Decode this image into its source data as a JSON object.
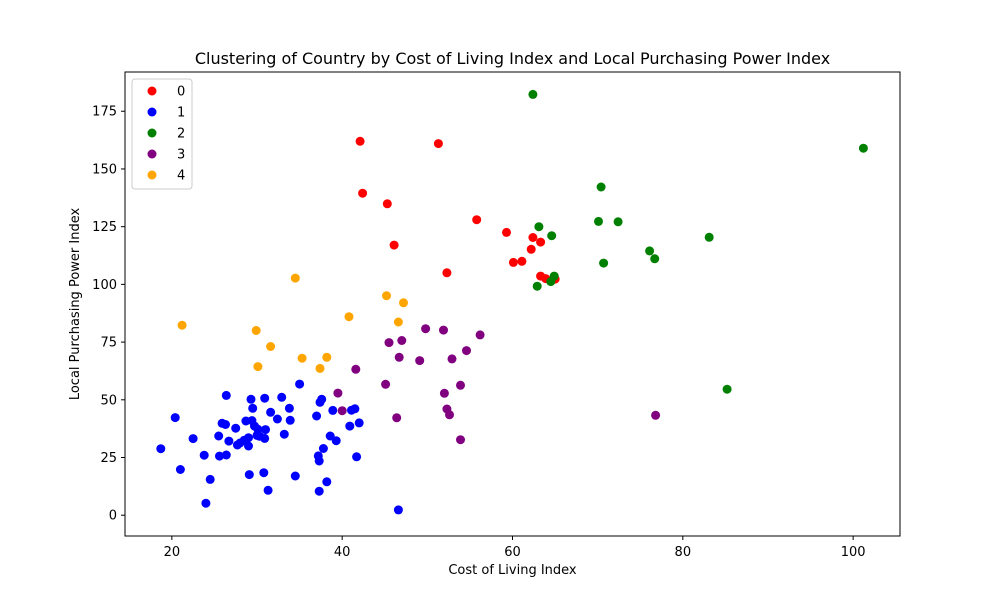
{
  "chart_data": {
    "type": "scatter",
    "title": "Clustering of Country by Cost of Living Index and Local Purchasing Power Index",
    "xlabel": "Cost of Living Index",
    "ylabel": "Local Purchasing Power Index",
    "xlim": [
      14.5,
      105.5
    ],
    "ylim": [
      -9,
      192
    ],
    "xticks": [
      20,
      40,
      60,
      80,
      100
    ],
    "yticks": [
      0,
      25,
      50,
      75,
      100,
      125,
      150,
      175
    ],
    "grid": false,
    "legend": {
      "position": "top-left",
      "entries": [
        "0",
        "1",
        "2",
        "3",
        "4"
      ]
    },
    "series": [
      {
        "name": "0",
        "color": "#ff0000",
        "points": [
          [
            42.1,
            162
          ],
          [
            51.3,
            161
          ],
          [
            42.4,
            139.5
          ],
          [
            45.3,
            134.9
          ],
          [
            46.1,
            117
          ],
          [
            55.8,
            128
          ],
          [
            59.3,
            122.5
          ],
          [
            62.4,
            120.3
          ],
          [
            63.3,
            118.3
          ],
          [
            62.2,
            115.2
          ],
          [
            60.1,
            109.5
          ],
          [
            61.1,
            110
          ],
          [
            52.3,
            105
          ],
          [
            63.3,
            103.6
          ],
          [
            63.9,
            102.5
          ],
          [
            65.0,
            102.3
          ]
        ]
      },
      {
        "name": "1",
        "color": "#0000ff",
        "points": [
          [
            18.7,
            28.8
          ],
          [
            20.4,
            42.3
          ],
          [
            21.0,
            19.8
          ],
          [
            22.5,
            33.2
          ],
          [
            23.8,
            26.0
          ],
          [
            24.0,
            5.2
          ],
          [
            24.5,
            15.5
          ],
          [
            25.5,
            34.3
          ],
          [
            25.6,
            25.6
          ],
          [
            25.9,
            39.8
          ],
          [
            26.3,
            39.3
          ],
          [
            26.4,
            51.9
          ],
          [
            26.4,
            26.1
          ],
          [
            26.7,
            32.1
          ],
          [
            27.5,
            37.7
          ],
          [
            27.7,
            30.4
          ],
          [
            28.0,
            31.3
          ],
          [
            28.5,
            32.5
          ],
          [
            28.7,
            40.8
          ],
          [
            29.0,
            33.6
          ],
          [
            29.0,
            30.0
          ],
          [
            29.1,
            17.6
          ],
          [
            29.3,
            50.2
          ],
          [
            29.4,
            41.0
          ],
          [
            29.5,
            46.3
          ],
          [
            29.7,
            38.6
          ],
          [
            30.0,
            34.6
          ],
          [
            30.1,
            37.2
          ],
          [
            30.3,
            34.2
          ],
          [
            30.8,
            18.4
          ],
          [
            30.9,
            50.7
          ],
          [
            30.9,
            33.3
          ],
          [
            31.0,
            37.1
          ],
          [
            31.3,
            10.8
          ],
          [
            31.6,
            44.6
          ],
          [
            32.4,
            41.7
          ],
          [
            32.9,
            51.1
          ],
          [
            33.2,
            35.1
          ],
          [
            33.8,
            46.3
          ],
          [
            33.9,
            41.1
          ],
          [
            34.5,
            17.0
          ],
          [
            35.0,
            56.8
          ],
          [
            37.0,
            43.0
          ],
          [
            37.2,
            25.7
          ],
          [
            37.3,
            23.5
          ],
          [
            37.3,
            10.4
          ],
          [
            37.4,
            48.9
          ],
          [
            37.6,
            50.2
          ],
          [
            37.8,
            28.9
          ],
          [
            38.2,
            14.5
          ],
          [
            38.6,
            34.3
          ],
          [
            38.9,
            45.4
          ],
          [
            39.3,
            32.3
          ],
          [
            40.9,
            38.6
          ],
          [
            41.1,
            45.5
          ],
          [
            41.5,
            46.1
          ],
          [
            41.7,
            25.3
          ],
          [
            42.0,
            40.0
          ],
          [
            46.6,
            2.3
          ]
        ]
      },
      {
        "name": "2",
        "color": "#008000",
        "points": [
          [
            62.4,
            182.3
          ],
          [
            101.2,
            159
          ],
          [
            70.4,
            142.2
          ],
          [
            70.1,
            127.3
          ],
          [
            72.4,
            127.1
          ],
          [
            63.1,
            125
          ],
          [
            64.6,
            121.1
          ],
          [
            83.1,
            120.4
          ],
          [
            76.1,
            114.5
          ],
          [
            76.7,
            111.1
          ],
          [
            70.7,
            109.2
          ],
          [
            64.9,
            103.6
          ],
          [
            64.5,
            101.2
          ],
          [
            62.9,
            99.2
          ],
          [
            85.2,
            54.6
          ]
        ]
      },
      {
        "name": "3",
        "color": "#800080",
        "points": [
          [
            49.8,
            80.8
          ],
          [
            51.9,
            80.2
          ],
          [
            56.2,
            78.1
          ],
          [
            47.0,
            75.7
          ],
          [
            45.5,
            74.8
          ],
          [
            54.6,
            71.3
          ],
          [
            46.7,
            68.4
          ],
          [
            52.9,
            67.7
          ],
          [
            49.1,
            67.0
          ],
          [
            41.6,
            63.2
          ],
          [
            45.1,
            56.7
          ],
          [
            53.9,
            56.3
          ],
          [
            39.5,
            52.9
          ],
          [
            52.0,
            52.8
          ],
          [
            40.0,
            45.3
          ],
          [
            52.3,
            46.0
          ],
          [
            52.6,
            43.5
          ],
          [
            46.4,
            42.2
          ],
          [
            76.8,
            43.3
          ],
          [
            53.9,
            32.7
          ]
        ]
      },
      {
        "name": "4",
        "color": "#ffa500",
        "points": [
          [
            34.5,
            102.7
          ],
          [
            45.2,
            95.1
          ],
          [
            47.2,
            92.0
          ],
          [
            40.8,
            86.0
          ],
          [
            46.6,
            83.7
          ],
          [
            21.2,
            82.3
          ],
          [
            29.9,
            80.0
          ],
          [
            31.6,
            73.1
          ],
          [
            35.3,
            68.0
          ],
          [
            38.2,
            68.4
          ],
          [
            30.1,
            64.4
          ],
          [
            37.4,
            63.6
          ]
        ]
      }
    ]
  }
}
